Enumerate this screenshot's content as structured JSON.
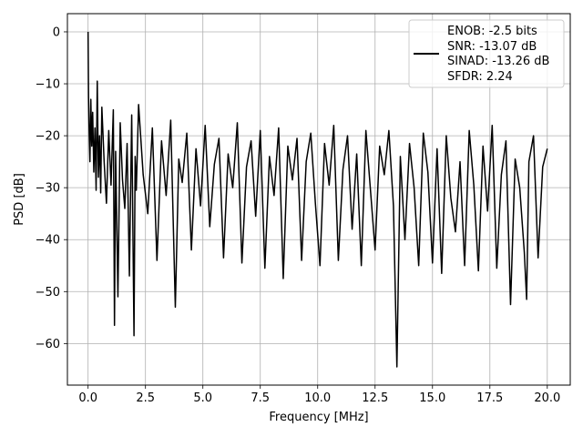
{
  "chart_data": {
    "type": "line",
    "xlabel": "Frequency [MHz]",
    "ylabel": "PSD [dB]",
    "xlim": [
      -0.9,
      21.0
    ],
    "ylim": [
      -68,
      3.5
    ],
    "xticks": [
      0.0,
      2.5,
      5.0,
      7.5,
      10.0,
      12.5,
      15.0,
      17.5,
      20.0
    ],
    "xtick_labels": [
      "0.0",
      "2.5",
      "5.0",
      "7.5",
      "10.0",
      "12.5",
      "15.0",
      "17.5",
      "20.0"
    ],
    "yticks": [
      0,
      -10,
      -20,
      -30,
      -40,
      -50,
      -60
    ],
    "ytick_labels": [
      "0",
      "−10",
      "−20",
      "−30",
      "−40",
      "−50",
      "−60"
    ],
    "grid": true,
    "legend_position": "top-right",
    "series": [
      {
        "color": "#000000",
        "x": [
          0.0,
          0.02,
          0.05,
          0.08,
          0.12,
          0.16,
          0.2,
          0.25,
          0.3,
          0.35,
          0.4,
          0.45,
          0.5,
          0.55,
          0.6,
          0.7,
          0.8,
          0.9,
          1.0,
          1.1,
          1.15,
          1.2,
          1.3,
          1.4,
          1.5,
          1.6,
          1.7,
          1.8,
          1.9,
          2.0,
          2.05,
          2.1,
          2.2,
          2.4,
          2.6,
          2.8,
          3.0,
          3.2,
          3.4,
          3.6,
          3.8,
          3.95,
          4.1,
          4.3,
          4.5,
          4.7,
          4.9,
          5.1,
          5.3,
          5.5,
          5.7,
          5.9,
          6.1,
          6.3,
          6.5,
          6.7,
          6.9,
          7.1,
          7.3,
          7.5,
          7.7,
          7.9,
          8.1,
          8.3,
          8.5,
          8.7,
          8.9,
          9.1,
          9.3,
          9.5,
          9.7,
          9.9,
          10.1,
          10.3,
          10.5,
          10.7,
          10.9,
          11.1,
          11.3,
          11.5,
          11.7,
          11.9,
          12.1,
          12.3,
          12.5,
          12.7,
          12.9,
          13.1,
          13.3,
          13.45,
          13.6,
          13.8,
          14.0,
          14.2,
          14.4,
          14.6,
          14.8,
          15.0,
          15.2,
          15.4,
          15.6,
          15.8,
          16.0,
          16.2,
          16.4,
          16.6,
          16.8,
          17.0,
          17.2,
          17.4,
          17.6,
          17.8,
          18.0,
          18.2,
          18.4,
          18.6,
          18.8,
          19.0,
          19.1,
          19.2,
          19.4,
          19.6,
          19.8,
          20.0
        ],
        "y": [
          0.0,
          -12.5,
          -20.0,
          -25.0,
          -13.0,
          -22.0,
          -15.5,
          -27.0,
          -18.5,
          -30.5,
          -9.5,
          -28.0,
          -20.0,
          -31.0,
          -14.5,
          -25.0,
          -33.0,
          -19.0,
          -29.5,
          -15.0,
          -56.5,
          -23.0,
          -51.0,
          -17.5,
          -28.5,
          -34.0,
          -21.5,
          -47.0,
          -16.0,
          -58.5,
          -24.0,
          -30.5,
          -14.0,
          -27.5,
          -35.0,
          -18.5,
          -44.0,
          -21.0,
          -31.5,
          -17.0,
          -53.0,
          -24.5,
          -29.0,
          -19.5,
          -42.0,
          -22.5,
          -33.5,
          -18.0,
          -37.5,
          -25.5,
          -20.5,
          -43.5,
          -23.5,
          -30.0,
          -17.5,
          -44.5,
          -26.0,
          -21.0,
          -35.5,
          -19.0,
          -45.5,
          -24.0,
          -31.5,
          -18.5,
          -47.5,
          -22.0,
          -28.5,
          -20.5,
          -44.0,
          -25.0,
          -19.5,
          -33.0,
          -45.0,
          -21.5,
          -29.5,
          -18.0,
          -44.0,
          -26.5,
          -20.0,
          -38.0,
          -23.5,
          -45.0,
          -19.0,
          -30.5,
          -42.0,
          -22.0,
          -27.5,
          -19.0,
          -33.5,
          -64.5,
          -24.0,
          -40.0,
          -21.5,
          -30.0,
          -45.0,
          -19.5,
          -27.0,
          -44.5,
          -22.5,
          -46.5,
          -20.0,
          -32.0,
          -38.5,
          -25.0,
          -45.0,
          -19.0,
          -29.5,
          -46.0,
          -22.0,
          -34.5,
          -18.0,
          -45.5,
          -27.5,
          -21.0,
          -52.5,
          -24.5,
          -30.0,
          -42.5,
          -51.5,
          -25.0,
          -20.0,
          -43.5,
          -26.0,
          -22.5
        ]
      }
    ],
    "legend": {
      "lines": [
        "ENOB: -2.5 bits",
        "SNR: -13.07 dB",
        "SINAD: -13.26 dB",
        "SFDR: 2.24"
      ]
    }
  }
}
